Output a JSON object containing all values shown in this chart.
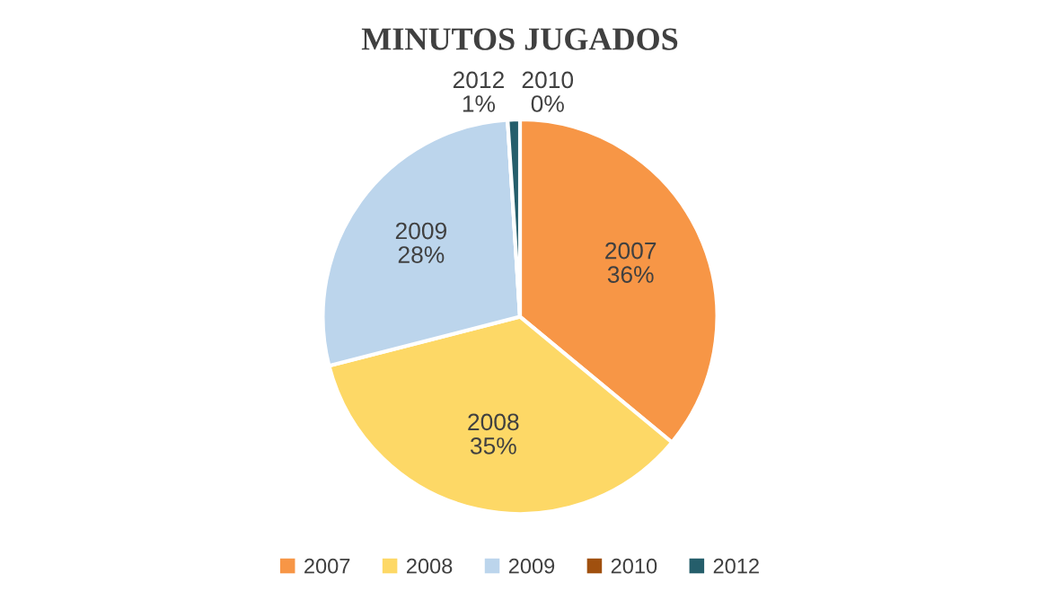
{
  "chart_data": {
    "type": "pie",
    "title": "MINUTOS JUGADOS",
    "categories": [
      "2007",
      "2008",
      "2009",
      "2010",
      "2012"
    ],
    "values": [
      36,
      35,
      28,
      0,
      1
    ],
    "colors": [
      "#f79646",
      "#fdd866",
      "#bcd5ec",
      "#a0500f",
      "#255e6b"
    ],
    "value_labels": [
      "36%",
      "35%",
      "28%",
      "0%",
      "1%"
    ],
    "legend": "bottom"
  }
}
